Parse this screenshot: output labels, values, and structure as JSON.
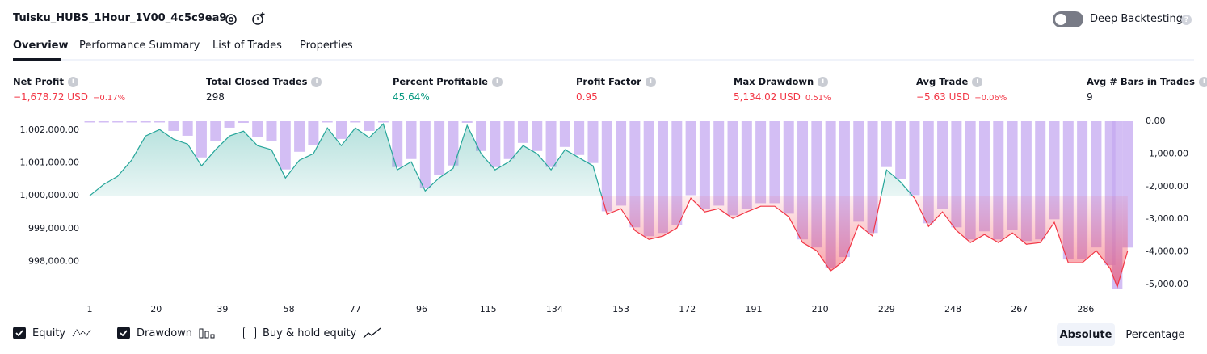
{
  "header": {
    "title": "Tuisku_HUBS_1Hour_1V00_4c5c9ea9",
    "deep_backtesting": "Deep Backtesting"
  },
  "tabs": [
    "Overview",
    "Performance Summary",
    "List of Trades",
    "Properties"
  ],
  "metrics": [
    {
      "label": "Net Profit",
      "value": "−1,678.72 USD",
      "change": "−0.17%",
      "color": "#f23645"
    },
    {
      "label": "Total Closed Trades",
      "value": "298",
      "color": "#131722"
    },
    {
      "label": "Percent Profitable",
      "value": "45.64%",
      "color": "#089981"
    },
    {
      "label": "Profit Factor",
      "value": "0.95",
      "color": "#f23645"
    },
    {
      "label": "Max Drawdown",
      "value": "5,134.02 USD",
      "change": "0.51%",
      "color": "#f23645"
    },
    {
      "label": "Avg Trade",
      "value": "−5.63 USD",
      "change": "−0.06%",
      "color": "#f23645"
    },
    {
      "label": "Avg # Bars in Trades",
      "value": "9",
      "color": "#131722"
    }
  ],
  "chart_data": {
    "type": "line",
    "x": [
      1,
      5,
      9,
      13,
      17,
      21,
      25,
      29,
      33,
      37,
      41,
      45,
      49,
      53,
      57,
      61,
      65,
      69,
      73,
      77,
      81,
      85,
      89,
      93,
      97,
      101,
      105,
      109,
      113,
      117,
      121,
      125,
      129,
      133,
      137,
      141,
      145,
      149,
      153,
      157,
      161,
      165,
      169,
      173,
      177,
      181,
      185,
      189,
      193,
      197,
      201,
      205,
      209,
      213,
      217,
      221,
      225,
      229,
      233,
      237,
      241,
      245,
      249,
      253,
      257,
      261,
      265,
      269,
      273,
      277,
      281,
      285,
      289,
      293,
      295,
      298
    ],
    "series": [
      {
        "name": "Equity",
        "color": "#26a69a",
        "negative_color": "#f23645",
        "axis": "y",
        "type": "line",
        "values": [
          1000000,
          1000345,
          1000591,
          1001084,
          1001823,
          1002020,
          1001724,
          1001576,
          1000911,
          1001404,
          1001823,
          1001970,
          1001527,
          1001404,
          1000542,
          1001084,
          1001281,
          1002069,
          1001527,
          1002069,
          1001773,
          1002192,
          1000788,
          1001034,
          1000148,
          1000542,
          1000837,
          1002143,
          1001281,
          1000788,
          1001034,
          1001527,
          1001281,
          1000788,
          1001404,
          1001158,
          1000911,
          999433,
          999606,
          998941,
          998670,
          998768,
          999015,
          999926,
          999507,
          999606,
          999310,
          999507,
          999680,
          999680,
          999360,
          998571,
          998325,
          997709,
          998030,
          999113,
          998768,
          1000788,
          1000419,
          999926,
          999064,
          999507,
          998941,
          998571,
          998818,
          998571,
          998867,
          998522,
          998571,
          999187,
          997956,
          997956,
          998325,
          997783,
          997217,
          998321.28
        ]
      },
      {
        "name": "Drawdown",
        "color": "#c4a8f0",
        "axis": "y2",
        "type": "bar",
        "values": [
          0,
          0,
          0,
          0,
          0,
          0,
          -296,
          -444,
          -1109,
          -616,
          -197,
          -50,
          -493,
          -616,
          -1478,
          -936,
          -739,
          0,
          -542,
          0,
          -296,
          0,
          -1404,
          -1158,
          -2044,
          -1650,
          -1355,
          -49,
          -911,
          -1404,
          -1158,
          -665,
          -911,
          -1404,
          -788,
          -1034,
          -1281,
          -2759,
          -2586,
          -3251,
          -3522,
          -3424,
          -3177,
          -2266,
          -2685,
          -2586,
          -2882,
          -2685,
          -2512,
          -2512,
          -2832,
          -3621,
          -3867,
          -4483,
          -4162,
          -3079,
          -3424,
          -1404,
          -1773,
          -2266,
          -3128,
          -2685,
          -3251,
          -3621,
          -3374,
          -3621,
          -3325,
          -3670,
          -3621,
          -3005,
          -4236,
          -4236,
          -3867,
          -4409,
          -5134.02,
          -3870.72
        ]
      }
    ],
    "xlim": [
      0,
      300
    ],
    "xticks": [
      1,
      20,
      39,
      58,
      77,
      96,
      115,
      134,
      153,
      172,
      191,
      210,
      229,
      248,
      267,
      286
    ],
    "ylim": [
      997100,
      1002270
    ],
    "yticks": [
      {
        "value": 998000,
        "label": "998,000.00"
      },
      {
        "value": 999000,
        "label": "999,000.00"
      },
      {
        "value": 1000000,
        "label": "1,000,000.00"
      },
      {
        "value": 1001000,
        "label": "1,001,000.00"
      },
      {
        "value": 1002000,
        "label": "1,002,000.00"
      }
    ],
    "y2lim": [
      -5200,
      0
    ],
    "y2ticks": [
      {
        "value": 0,
        "label": "0.00"
      },
      {
        "value": -1000,
        "label": "-1,000.00"
      },
      {
        "value": -2000,
        "label": "-2,000.00"
      },
      {
        "value": -3000,
        "label": "-3,000.00"
      },
      {
        "value": -4000,
        "label": "-4,000.00"
      },
      {
        "value": -5000,
        "label": "-5,000.00"
      }
    ]
  },
  "controls": {
    "buy_hold": "Buy & hold equity",
    "views": [
      "Absolute",
      "Percentage"
    ]
  }
}
